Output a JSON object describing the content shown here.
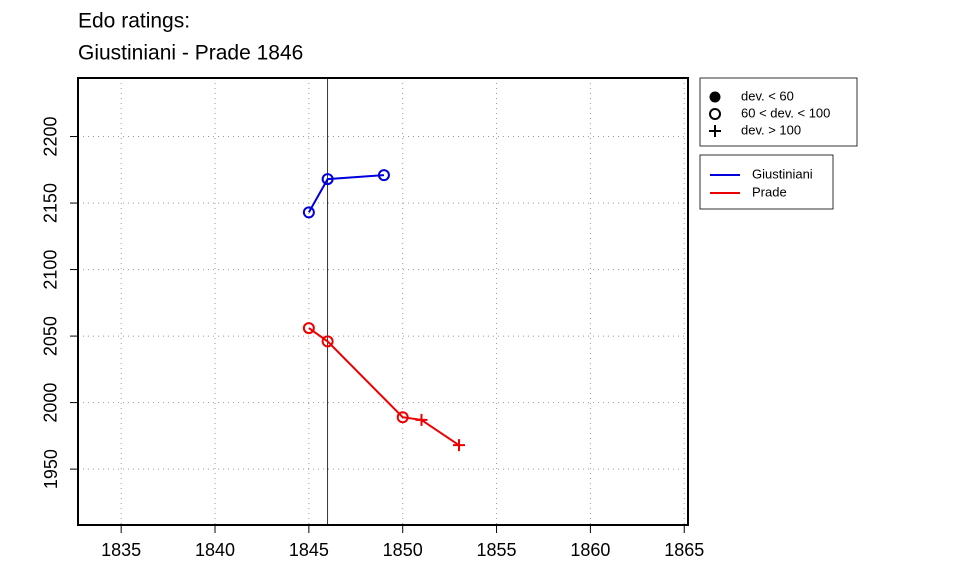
{
  "chart_data": {
    "type": "line",
    "title": [
      "Edo ratings:",
      "Giustiniani - Prade 1846"
    ],
    "xlim": [
      1832.7,
      1865.2
    ],
    "xticks": [
      1835,
      1840,
      1845,
      1850,
      1855,
      1860,
      1865
    ],
    "ylim": [
      1908,
      2244
    ],
    "yticks": [
      1950,
      2000,
      2050,
      2100,
      2150,
      2200
    ],
    "grid": true,
    "vline": 1846,
    "symbol_legend": {
      "labels": [
        "dev. < 60",
        "60 < dev. < 100",
        "dev. > 100"
      ],
      "markers": [
        "filled",
        "open",
        "plus"
      ]
    },
    "series": [
      {
        "name": "Giustiniani",
        "color": "#0000dd",
        "x": [
          1845,
          1846,
          1849
        ],
        "values": [
          2143,
          2168,
          2171
        ],
        "markers": [
          "open",
          "open",
          "open"
        ]
      },
      {
        "name": "Prade",
        "color": "#ee0000",
        "x": [
          1845,
          1846,
          1850,
          1851,
          1853
        ],
        "values": [
          2056,
          2046,
          1989,
          1987,
          1968
        ],
        "markers": [
          "open",
          "open",
          "open",
          "plus",
          "plus"
        ]
      }
    ]
  }
}
